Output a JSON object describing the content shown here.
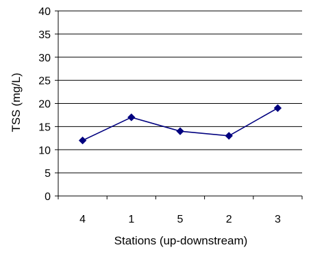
{
  "chart_data": {
    "type": "line",
    "categories": [
      "4",
      "1",
      "5",
      "2",
      "3"
    ],
    "series": [
      {
        "values": [
          12,
          17,
          14,
          13,
          19
        ],
        "color": "#00007F",
        "marker": "diamond"
      }
    ],
    "xlabel": "Stations (up-downstream)",
    "ylabel": "TSS (mg/L)",
    "ylim": [
      0,
      40
    ],
    "yticks": [
      0,
      5,
      10,
      15,
      20,
      25,
      30,
      35,
      40
    ],
    "ytick_labels": [
      "0",
      "5",
      "10",
      "15",
      "20",
      "25",
      "30",
      "35",
      "40"
    ],
    "grid": "horizontal",
    "legend": "none"
  }
}
